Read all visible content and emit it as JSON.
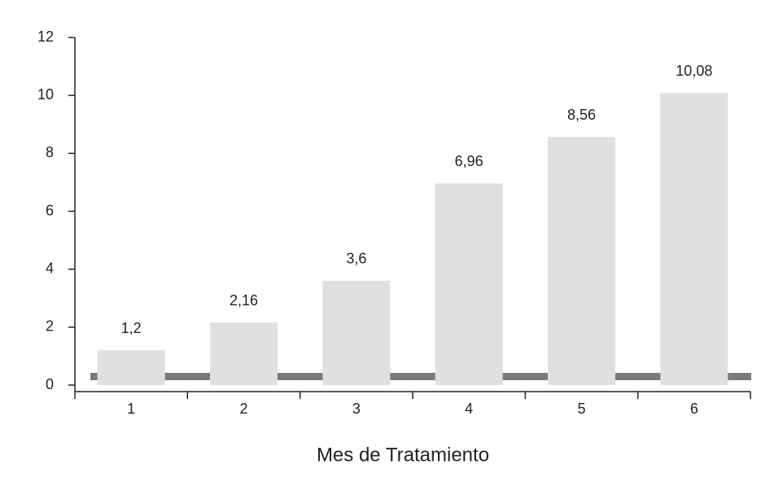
{
  "chart_data": {
    "type": "bar",
    "x_label": "Mes de Tratamiento",
    "categories": [
      "1",
      "2",
      "3",
      "4",
      "5",
      "6"
    ],
    "values": [
      1.2,
      2.16,
      3.6,
      6.96,
      8.56,
      10.08
    ],
    "value_labels": [
      "1,2",
      "2,16",
      "3,6",
      "6,96",
      "8,56",
      "10,08"
    ],
    "color": "#e0e0e2",
    "ylim": [
      0,
      12
    ],
    "yticks": [
      0,
      2,
      4,
      6,
      8,
      10,
      12
    ]
  }
}
